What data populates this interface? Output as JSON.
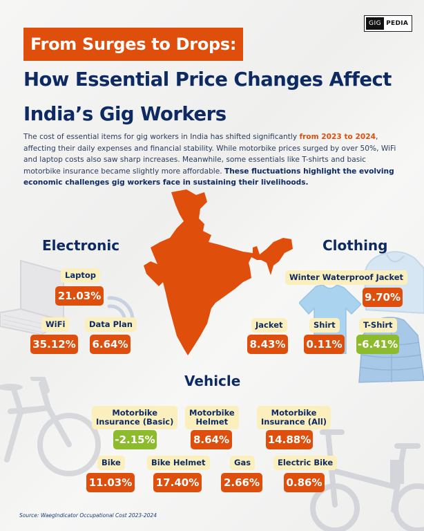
{
  "brand": {
    "part1": "GIG",
    "part2": "PEDIA"
  },
  "title": {
    "highlight": "From Surges to Drops:",
    "line1": "How Essential Price Changes Affect",
    "line2": "India’s Gig Workers"
  },
  "intro": {
    "part1": "The cost of essential items for gig workers in India has shifted significantly ",
    "highlight": "from 2023 to 2024",
    "part2": ", affecting their daily expenses and financial stability. While motorbike prices surged by over 50%, WiFi and laptop costs also saw sharp increases. Meanwhile, some essentials like T-shirts and basic motorbike insurance became slightly more affordable. ",
    "strong": "These fluctuations highlight the evolving economic challenges gig workers face in sustaining their livelihoods."
  },
  "sections": {
    "electronic": {
      "title": "Electronic",
      "items": [
        {
          "label": "Laptop",
          "value": "21.03%",
          "direction": "up"
        },
        {
          "label": "WiFi",
          "value": "35.12%",
          "direction": "up"
        },
        {
          "label": "Data Plan",
          "value": "6.64%",
          "direction": "up"
        }
      ]
    },
    "clothing": {
      "title": "Clothing",
      "items": [
        {
          "label": "Winter Waterproof Jacket",
          "value": "9.70%",
          "direction": "up"
        },
        {
          "label": "Jacket",
          "value": "8.43%",
          "direction": "up"
        },
        {
          "label": "Shirt",
          "value": "0.11%",
          "direction": "up"
        },
        {
          "label": "T-Shirt",
          "value": "-6.41%",
          "direction": "down"
        }
      ]
    },
    "vehicle": {
      "title": "Vehicle",
      "items": [
        {
          "label_line1": "Motorbike",
          "label_line2": "Insurance (Basic)",
          "value": "-2.15%",
          "direction": "down"
        },
        {
          "label_line1": "Motorbike",
          "label_line2": "Helmet",
          "value": "8.64%",
          "direction": "up"
        },
        {
          "label_line1": "Motorbike",
          "label_line2": "Insurance (All)",
          "value": "14.88%",
          "direction": "up"
        },
        {
          "label": "Bike",
          "value": "11.03%",
          "direction": "up"
        },
        {
          "label": "Bike Helmet",
          "value": "17.40%",
          "direction": "up"
        },
        {
          "label": "Gas",
          "value": "2.66%",
          "direction": "up"
        },
        {
          "label": "Electric Bike",
          "value": "0.86%",
          "direction": "up"
        }
      ]
    }
  },
  "source": "Source: WaegIndicator Occupational Cost 2023-2024",
  "colors": {
    "increase": "#de4f0e",
    "decrease": "#8dbb2e",
    "label_bg": "#fbf0bd",
    "heading": "#0d2a63",
    "map": "#e04e0b"
  }
}
